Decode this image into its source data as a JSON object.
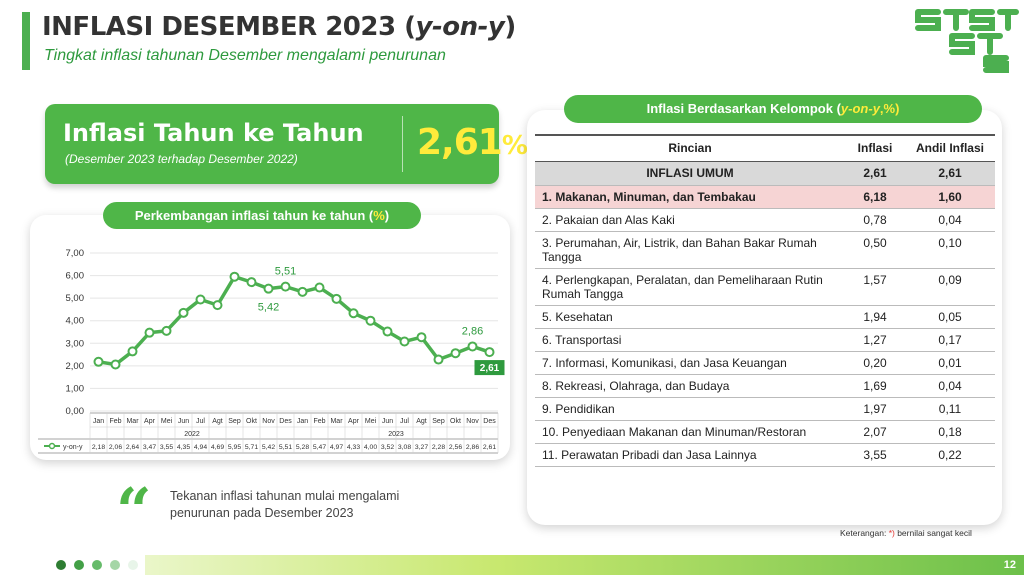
{
  "header": {
    "title": "INFLASI DESEMBER 2023 (",
    "title_em": "y-on-y",
    "title_end": ")",
    "subtitle": "Tingkat inflasi tahunan Desember mengalami penurunan",
    "logo_text": "ST"
  },
  "headline": {
    "label": "Inflasi Tahun ke Tahun",
    "sub": "(Desember 2023 terhadap Desember 2022)",
    "value": "2,61",
    "unit": "%"
  },
  "chart_head": {
    "text": "Perkembangan inflasi tahun ke tahun (",
    "unit": "%",
    "end": ")"
  },
  "chart_data": {
    "type": "line",
    "x": [
      "Jan",
      "Feb",
      "Mar",
      "Apr",
      "Mei",
      "Jun",
      "Jul",
      "Agt",
      "Sep",
      "Okt",
      "Nov",
      "Des",
      "Jan",
      "Feb",
      "Mar",
      "Apr",
      "Mei",
      "Jun",
      "Jul",
      "Agt",
      "Sep",
      "Okt",
      "Nov",
      "Des"
    ],
    "x_labels": [
      "2,18",
      "2,06",
      "2,64",
      "3,47",
      "3,55",
      "4,35",
      "4,94",
      "4,69",
      "5,95",
      "5,71",
      "5,42",
      "5,51",
      "5,28",
      "5,47",
      "4,97",
      "4,33",
      "4,00",
      "3,52",
      "3,08",
      "3,27",
      "2,28",
      "2,56",
      "2,86",
      "2,61"
    ],
    "year_labels": [
      "2022",
      "2023"
    ],
    "series": [
      {
        "name": "y-on-y",
        "values": [
          2.18,
          2.06,
          2.64,
          3.47,
          3.55,
          4.35,
          4.94,
          4.69,
          5.95,
          5.71,
          5.42,
          5.51,
          5.28,
          5.47,
          4.97,
          4.33,
          4.0,
          3.52,
          3.08,
          3.27,
          2.28,
          2.56,
          2.86,
          2.61
        ]
      }
    ],
    "y_ticks": [
      "0,00",
      "1,00",
      "2,00",
      "3,00",
      "4,00",
      "5,00",
      "6,00",
      "7,00"
    ],
    "ylim": [
      0,
      7
    ],
    "annotations": [
      {
        "index": 11,
        "text": "5,51",
        "pos": "above"
      },
      {
        "index": 10,
        "text": "5,42",
        "pos": "below"
      },
      {
        "index": 22,
        "text": "2,86",
        "pos": "above"
      },
      {
        "index": 23,
        "text": "2,61",
        "pos": "box"
      }
    ],
    "color": "#4caf50",
    "grid": true
  },
  "quote": {
    "mark": "“",
    "text": "Tekanan inflasi tahunan mulai mengalami penurunan pada Desember 2023"
  },
  "table": {
    "head_text": "Inflasi Berdasarkan Kelompok (",
    "head_em": "y-on-y",
    "head_end": ",%)",
    "columns": [
      "Rincian",
      "Inflasi",
      "Andil Inflasi"
    ],
    "umum": {
      "name": "INFLASI UMUM",
      "inflasi": "2,61",
      "andil": "2,61"
    },
    "rows": [
      {
        "name": "1.  Makanan, Minuman, dan Tembakau",
        "inflasi": "6,18",
        "andil": "1,60"
      },
      {
        "name": "2.  Pakaian dan Alas Kaki",
        "inflasi": "0,78",
        "andil": "0,04"
      },
      {
        "name": "3.  Perumahan, Air, Listrik, dan Bahan Bakar Rumah Tangga",
        "inflasi": "0,50",
        "andil": "0,10"
      },
      {
        "name": "4.  Perlengkapan, Peralatan, dan Pemeliharaan Rutin Rumah Tangga",
        "inflasi": "1,57",
        "andil": "0,09"
      },
      {
        "name": "5.  Kesehatan",
        "inflasi": "1,94",
        "andil": "0,05"
      },
      {
        "name": "6.  Transportasi",
        "inflasi": "1,27",
        "andil": "0,17"
      },
      {
        "name": "7.  Informasi, Komunikasi, dan Jasa Keuangan",
        "inflasi": "0,20",
        "andil": "0,01"
      },
      {
        "name": "8.  Rekreasi, Olahraga, dan Budaya",
        "inflasi": "1,69",
        "andil": "0,04"
      },
      {
        "name": "9.  Pendidikan",
        "inflasi": "1,97",
        "andil": "0,11"
      },
      {
        "name": "10. Penyediaan Makanan dan Minuman/Restoran",
        "inflasi": "2,07",
        "andil": "0,18"
      },
      {
        "name": "11. Perawatan Pribadi dan Jasa Lainnya",
        "inflasi": "3,55",
        "andil": "0,22"
      }
    ],
    "note": "Keterangan: ",
    "note_star": "*)",
    "note_end": " bernilai sangat kecil"
  },
  "footer": {
    "page": "12",
    "dot_colors": [
      "#2e7d32",
      "#43a047",
      "#66bb6a",
      "#a5d6a7",
      "#e8f5e9"
    ]
  }
}
